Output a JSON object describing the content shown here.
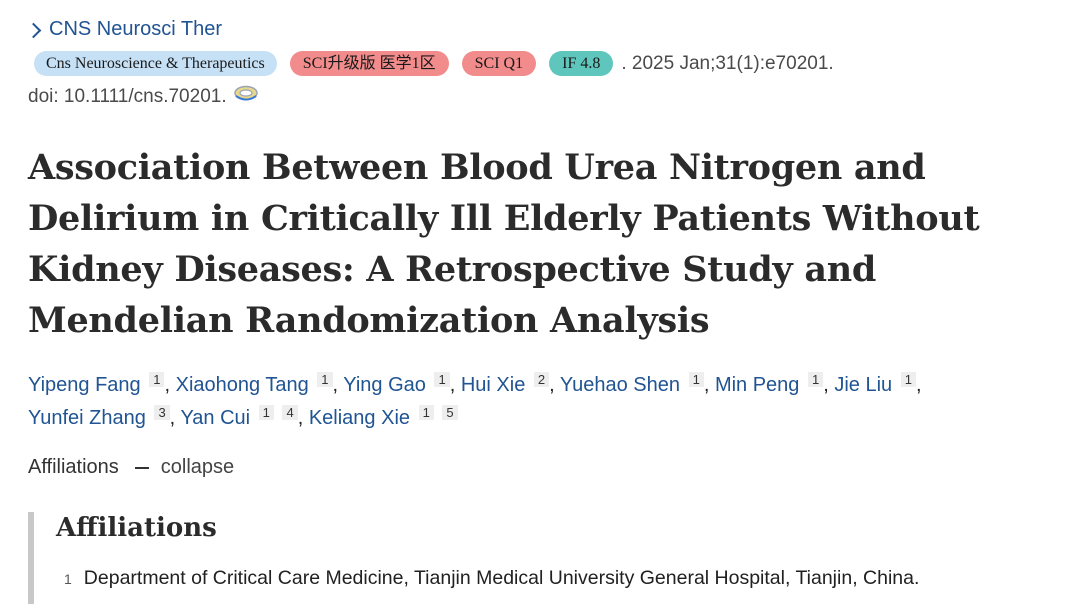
{
  "journal_link": "CNS Neurosci Ther",
  "badges": {
    "journal": "Cns Neuroscience & Therapeutics",
    "sci_level": "SCI升级版 医学1区",
    "sci_q": "SCI Q1",
    "impact_factor": "IF 4.8"
  },
  "citation": ". 2025 Jan;31(1):e70201.",
  "doi": "doi: 10.1111/cns.70201.",
  "title": "Association Between Blood Urea Nitrogen and Delirium in Critically Ill Elderly Patients Without Kidney Diseases: A Retrospective Study and Mendelian Randomization Analysis",
  "authors": [
    {
      "name": "Yipeng Fang",
      "affs": [
        "1"
      ]
    },
    {
      "name": "Xiaohong Tang",
      "affs": [
        "1"
      ]
    },
    {
      "name": "Ying Gao",
      "affs": [
        "1"
      ]
    },
    {
      "name": "Hui Xie",
      "affs": [
        "2"
      ]
    },
    {
      "name": "Yuehao Shen",
      "affs": [
        "1"
      ]
    },
    {
      "name": "Min Peng",
      "affs": [
        "1"
      ]
    },
    {
      "name": "Jie Liu",
      "affs": [
        "1"
      ]
    },
    {
      "name": "Yunfei Zhang",
      "affs": [
        "3"
      ]
    },
    {
      "name": "Yan Cui",
      "affs": [
        "1",
        "4"
      ]
    },
    {
      "name": "Keliang Xie",
      "affs": [
        "1",
        "5"
      ]
    }
  ],
  "affiliations_toggle": {
    "label": "Affiliations",
    "action": "collapse"
  },
  "affiliations": {
    "heading": "Affiliations",
    "items": [
      {
        "num": "1",
        "text": "Department of Critical Care Medicine, Tianjin Medical University General Hospital, Tianjin, China."
      }
    ]
  },
  "icons": {
    "journal_chevron": "chevron-right-icon",
    "doi_link": "doi-link-icon"
  },
  "colors": {
    "link": "#205493",
    "badge_journal": "#c6e0f5",
    "badge_sci": "#f28b8b",
    "badge_if": "#5fc6bd"
  }
}
